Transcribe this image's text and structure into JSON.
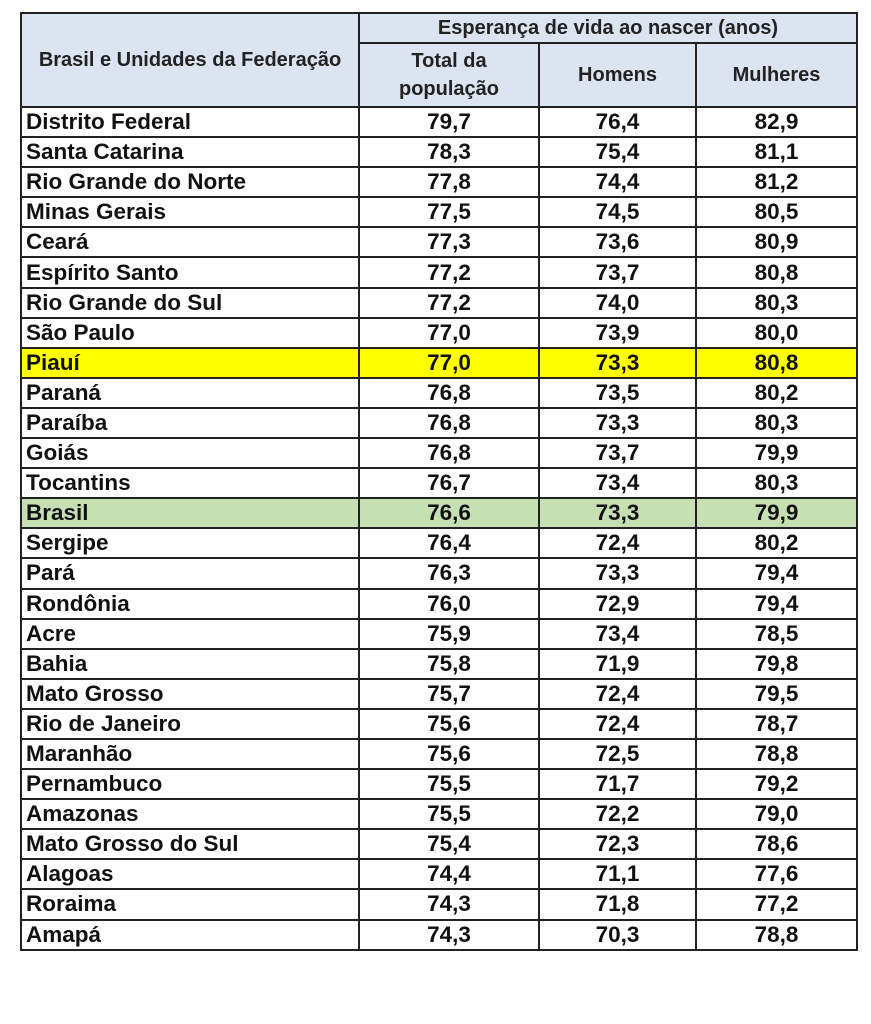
{
  "table": {
    "header_group": "Esperança de vida ao nascer (anos)",
    "header_region": "Brasil e Unidades da Federação",
    "columns": [
      "Total da população",
      "Homens",
      "Mulheres"
    ],
    "highlight_colors": {
      "yellow": "#ffff00",
      "green": "#c6e0b4",
      "header": "#dce3f1"
    },
    "rows": [
      {
        "name": "Distrito Federal",
        "total": "79,7",
        "homens": "76,4",
        "mulheres": "82,9"
      },
      {
        "name": "Santa Catarina",
        "total": "78,3",
        "homens": "75,4",
        "mulheres": "81,1"
      },
      {
        "name": "Rio Grande do Norte",
        "total": "77,8",
        "homens": "74,4",
        "mulheres": "81,2"
      },
      {
        "name": "Minas Gerais",
        "total": "77,5",
        "homens": "74,5",
        "mulheres": "80,5"
      },
      {
        "name": "Ceará",
        "total": "77,3",
        "homens": "73,6",
        "mulheres": "80,9"
      },
      {
        "name": "Espírito Santo",
        "total": "77,2",
        "homens": "73,7",
        "mulheres": "80,8"
      },
      {
        "name": "Rio Grande do Sul",
        "total": "77,2",
        "homens": "74,0",
        "mulheres": "80,3"
      },
      {
        "name": "São Paulo",
        "total": "77,0",
        "homens": "73,9",
        "mulheres": "80,0"
      },
      {
        "name": "Piauí",
        "total": "77,0",
        "homens": "73,3",
        "mulheres": "80,8",
        "highlight": "yellow"
      },
      {
        "name": "Paraná",
        "total": "76,8",
        "homens": "73,5",
        "mulheres": "80,2"
      },
      {
        "name": "Paraíba",
        "total": "76,8",
        "homens": "73,3",
        "mulheres": "80,3"
      },
      {
        "name": "Goiás",
        "total": "76,8",
        "homens": "73,7",
        "mulheres": "79,9"
      },
      {
        "name": "Tocantins",
        "total": "76,7",
        "homens": "73,4",
        "mulheres": "80,3"
      },
      {
        "name": "Brasil",
        "total": "76,6",
        "homens": "73,3",
        "mulheres": "79,9",
        "highlight": "green"
      },
      {
        "name": "Sergipe",
        "total": "76,4",
        "homens": "72,4",
        "mulheres": "80,2"
      },
      {
        "name": "Pará",
        "total": "76,3",
        "homens": "73,3",
        "mulheres": "79,4"
      },
      {
        "name": "Rondônia",
        "total": "76,0",
        "homens": "72,9",
        "mulheres": "79,4"
      },
      {
        "name": "Acre",
        "total": "75,9",
        "homens": "73,4",
        "mulheres": "78,5"
      },
      {
        "name": "Bahia",
        "total": "75,8",
        "homens": "71,9",
        "mulheres": "79,8"
      },
      {
        "name": "Mato Grosso",
        "total": "75,7",
        "homens": "72,4",
        "mulheres": "79,5"
      },
      {
        "name": "Rio de Janeiro",
        "total": "75,6",
        "homens": "72,4",
        "mulheres": "78,7"
      },
      {
        "name": "Maranhão",
        "total": "75,6",
        "homens": "72,5",
        "mulheres": "78,8"
      },
      {
        "name": "Pernambuco",
        "total": "75,5",
        "homens": "71,7",
        "mulheres": "79,2"
      },
      {
        "name": "Amazonas",
        "total": "75,5",
        "homens": "72,2",
        "mulheres": "79,0"
      },
      {
        "name": "Mato Grosso do Sul",
        "total": "75,4",
        "homens": "72,3",
        "mulheres": "78,6"
      },
      {
        "name": "Alagoas",
        "total": "74,4",
        "homens": "71,1",
        "mulheres": "77,6"
      },
      {
        "name": "Roraima",
        "total": "74,3",
        "homens": "71,8",
        "mulheres": "77,2"
      },
      {
        "name": "Amapá",
        "total": "74,3",
        "homens": "70,3",
        "mulheres": "78,8"
      }
    ]
  }
}
